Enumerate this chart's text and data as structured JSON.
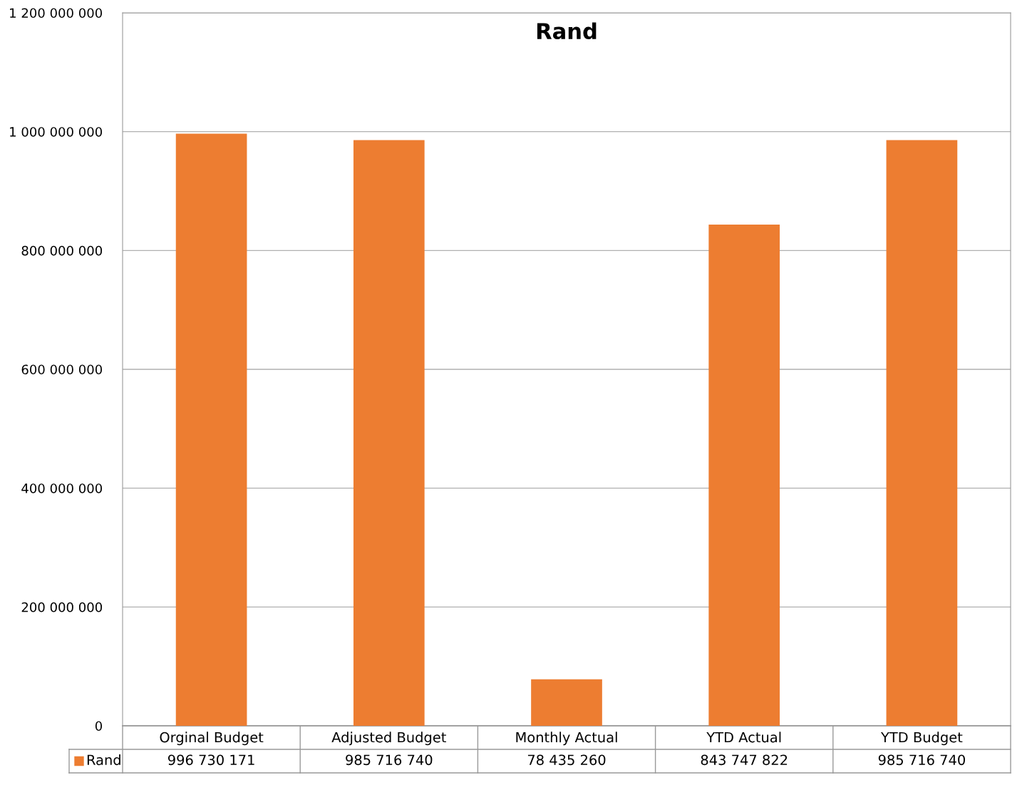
{
  "chart_data": {
    "type": "bar",
    "title": "Rand",
    "categories": [
      "Orginal Budget",
      "Adjusted Budget",
      "Monthly Actual",
      "YTD Actual",
      "YTD Budget"
    ],
    "series": [
      {
        "name": "Rand",
        "color": "#ed7d31",
        "values": [
          996730171,
          985716740,
          78435260,
          843747822,
          985716740
        ],
        "value_labels": [
          "996 730 171",
          "985 716 740",
          "78 435 260",
          "843 747 822",
          "985 716 740"
        ]
      }
    ],
    "ylim": [
      0,
      1200000000
    ],
    "yticks": [
      {
        "value": 0,
        "label": "0"
      },
      {
        "value": 200000000,
        "label": "200 000 000"
      },
      {
        "value": 400000000,
        "label": "400 000 000"
      },
      {
        "value": 600000000,
        "label": "600 000 000"
      },
      {
        "value": 800000000,
        "label": "800 000 000"
      },
      {
        "value": 1000000000,
        "label": "1 000 000 000"
      },
      {
        "value": 1200000000,
        "label": "1 200 000 000"
      }
    ],
    "grid": "y",
    "legend": "bottom"
  }
}
